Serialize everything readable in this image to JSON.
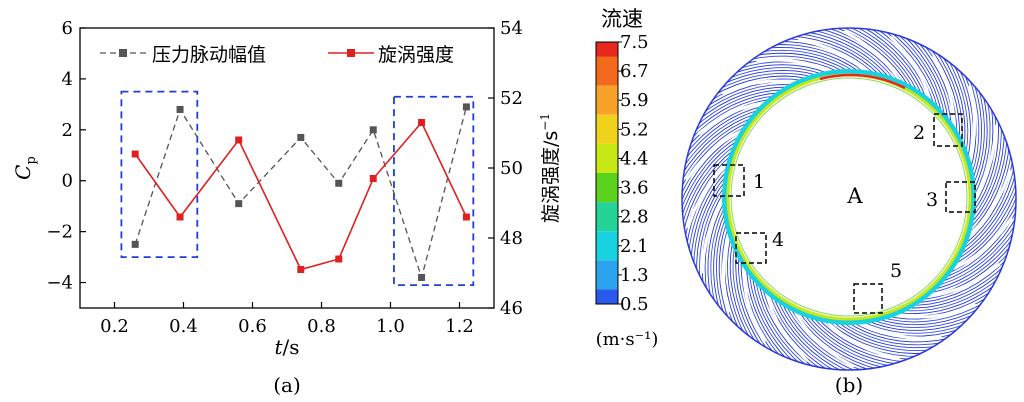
{
  "chart_data": [
    {
      "type": "line",
      "panel_label": "(a)",
      "xlabel_italic": "t",
      "xlabel_unit": "/s",
      "ylabel_left_main": "C",
      "ylabel_left_sub": "p",
      "ylabel_right": "旋涡强度/s",
      "ylabel_right_sup": "−1",
      "xlim": [
        0.1,
        1.3
      ],
      "ylim_left": [
        -5,
        6
      ],
      "ylim_right": [
        46,
        54
      ],
      "xticks": [
        0.2,
        0.4,
        0.6,
        0.8,
        1.0,
        1.2
      ],
      "xtick_labels": [
        "0.2",
        "0.4",
        "0.6",
        "0.8",
        "1.0",
        "1.2"
      ],
      "yticks_left": [
        -4,
        -2,
        0,
        2,
        4,
        6
      ],
      "ytick_labels_left": [
        "−4",
        "−2",
        "0",
        "2",
        "4",
        "6"
      ],
      "yticks_right": [
        46,
        48,
        50,
        52,
        54
      ],
      "ytick_labels_right": [
        "46",
        "48",
        "50",
        "52",
        "54"
      ],
      "legend_position": "top",
      "series": [
        {
          "name": "压力脉动幅值",
          "axis": "left",
          "color": "#555555",
          "line_style": "dashed",
          "x": [
            0.26,
            0.39,
            0.56,
            0.74,
            0.85,
            0.95,
            1.09,
            1.22
          ],
          "y": [
            -2.5,
            2.8,
            -0.9,
            1.7,
            -0.1,
            2.0,
            -3.8,
            2.9
          ]
        },
        {
          "name": "旋涡强度",
          "axis": "right",
          "color": "#e02020",
          "line_style": "solid",
          "x": [
            0.26,
            0.39,
            0.56,
            0.74,
            0.85,
            0.95,
            1.09,
            1.22
          ],
          "y": [
            50.4,
            48.6,
            50.8,
            47.1,
            47.4,
            49.7,
            51.3,
            48.6
          ]
        }
      ],
      "highlight_boxes_x_ranges": [
        [
          0.22,
          0.44
        ],
        [
          1.01,
          1.24
        ]
      ],
      "highlight_boxes_y_ranges_left": [
        [
          -3.0,
          3.5
        ],
        [
          -4.1,
          3.3
        ]
      ],
      "highlight_color": "#1f3fd8"
    },
    {
      "type": "heatmap",
      "panel_label": "(b)",
      "colorbar_title": "流速",
      "colorbar_unit": "(m·s⁻¹)",
      "colorbar_ticks": [
        "7.5",
        "6.7",
        "5.9",
        "5.2",
        "4.4",
        "3.6",
        "2.8",
        "2.1",
        "1.3",
        "0.5"
      ],
      "colorbar_colors": [
        "#e8281c",
        "#f46a1c",
        "#f8a22a",
        "#f0d21c",
        "#c8e816",
        "#5ad21e",
        "#24d496",
        "#18d2e0",
        "#2aa4ec",
        "#2a5aec"
      ],
      "center_label": "A",
      "region_labels": [
        "1",
        "2",
        "3",
        "4",
        "5"
      ]
    }
  ]
}
